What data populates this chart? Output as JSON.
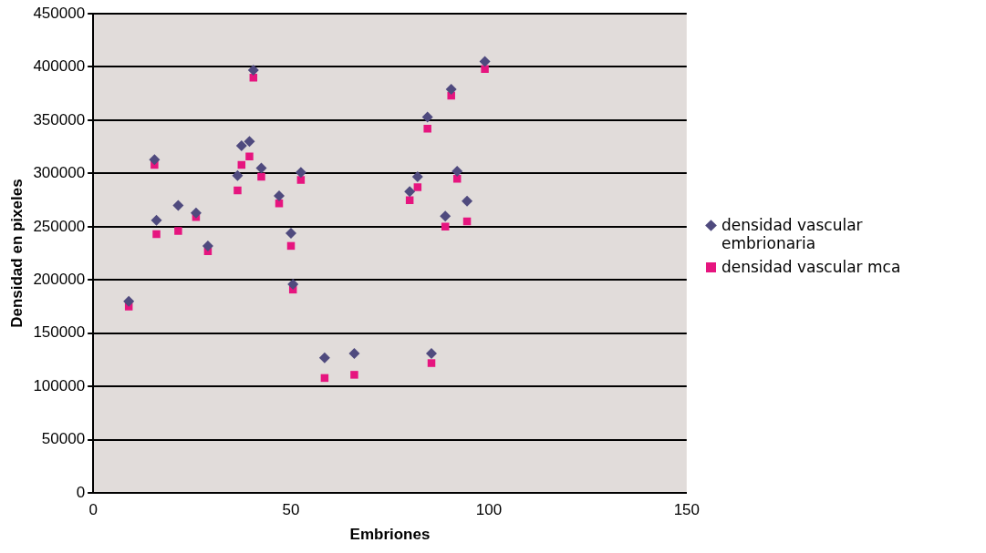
{
  "chart_data": {
    "type": "scatter",
    "xlabel": "Embriones",
    "ylabel": "Densidad en pixeles",
    "xlim": [
      0,
      150
    ],
    "xticks": [
      0,
      50,
      100,
      150
    ],
    "ylim": [
      0,
      450000
    ],
    "yticks": [
      0,
      50000,
      100000,
      150000,
      200000,
      250000,
      300000,
      350000,
      400000,
      450000
    ],
    "grid": "y",
    "legend": "right",
    "series": [
      {
        "name": "densidad vascular embrionaria",
        "color": "#4f4a7e",
        "marker": "diamond",
        "x": [
          9,
          15.5,
          16,
          21.5,
          26,
          29,
          36.5,
          37.5,
          39.5,
          40.5,
          42.5,
          47,
          50,
          50.5,
          52.5,
          58.5,
          66,
          80,
          82,
          84.5,
          85.5,
          89,
          90.5,
          92,
          94.5,
          99
        ],
        "values": [
          180000,
          313000,
          256000,
          270000,
          263000,
          232000,
          298000,
          326000,
          330000,
          397000,
          305000,
          279000,
          244000,
          196000,
          301000,
          127000,
          131000,
          283000,
          297000,
          353000,
          131000,
          260000,
          379000,
          302000,
          274000,
          405000
        ]
      },
      {
        "name": "densidad vascular mca",
        "color": "#e6157f",
        "marker": "square",
        "x": [
          9,
          15.5,
          16,
          21.5,
          26,
          29,
          36.5,
          37.5,
          39.5,
          40.5,
          42.5,
          47,
          50,
          50.5,
          52.5,
          58.5,
          66,
          80,
          82,
          84.5,
          85.5,
          89,
          90.5,
          92,
          94.5,
          99
        ],
        "values": [
          175000,
          308000,
          243000,
          246000,
          259000,
          227000,
          284000,
          308000,
          316000,
          390000,
          297000,
          272000,
          232000,
          191000,
          294000,
          108000,
          111000,
          275000,
          287000,
          342000,
          122000,
          250000,
          373000,
          295000,
          255000,
          398000
        ]
      }
    ]
  }
}
